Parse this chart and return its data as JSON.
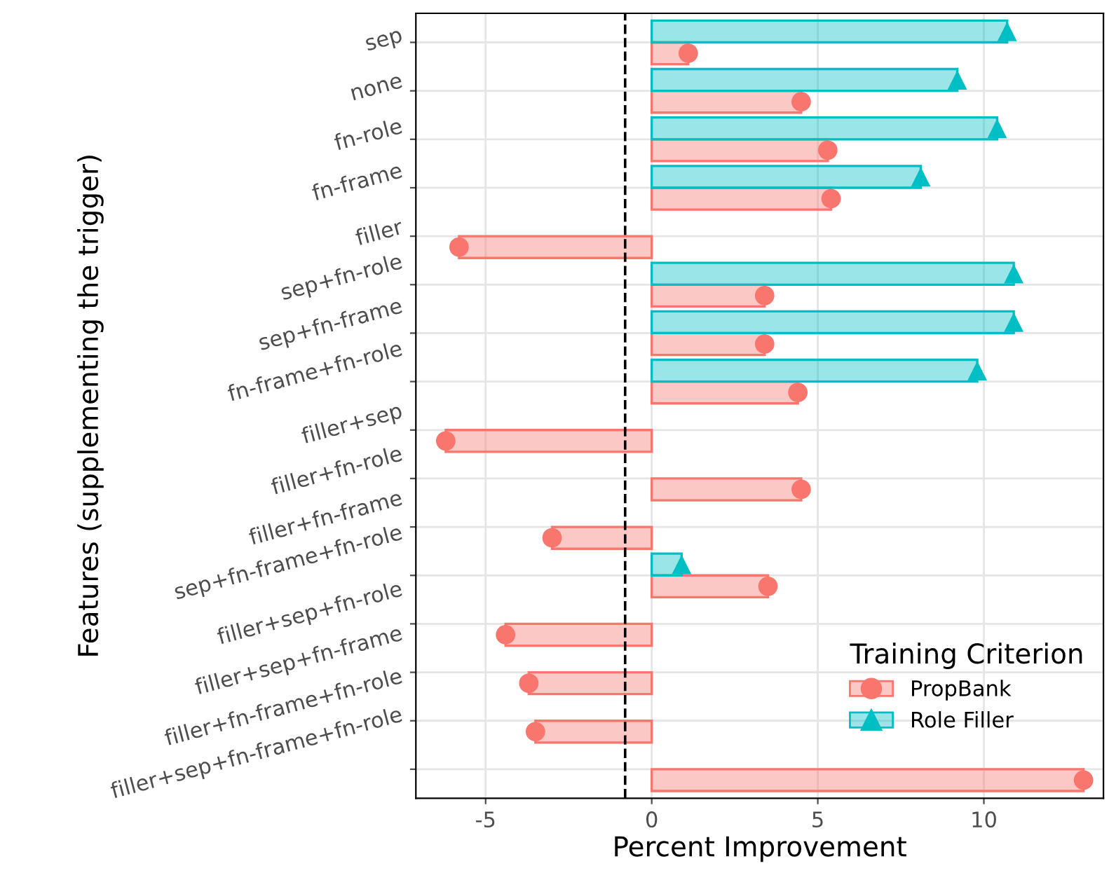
{
  "chart_data": {
    "type": "bar",
    "orientation": "horizontal",
    "xlabel": "Percent Improvement",
    "ylabel": "Features (supplementing the trigger)",
    "legend_title": "Training Criterion",
    "legend": "bottom right",
    "grid": true,
    "categories": [
      "sep",
      "none",
      "fn-role",
      "fn-frame",
      "filler",
      "sep+fn-role",
      "sep+fn-frame",
      "fn-frame+fn-role",
      "filler+sep",
      "filler+fn-role",
      "filler+fn-frame",
      "sep+fn-frame+fn-role",
      "filler+sep+fn-role",
      "filler+sep+fn-frame",
      "filler+fn-frame+fn-role",
      "filler+sep+fn-frame+fn-role"
    ],
    "series": [
      {
        "name": "PropBank",
        "color": "#f8766d",
        "values": [
          1.1,
          4.5,
          5.3,
          5.4,
          -5.8,
          3.4,
          3.4,
          4.4,
          -6.2,
          4.5,
          -3.0,
          3.5,
          -4.4,
          -3.7,
          -3.5,
          13.0
        ]
      },
      {
        "name": "Role Filler",
        "color": "#00bfc4",
        "values": [
          10.7,
          9.2,
          10.4,
          8.1,
          null,
          10.9,
          10.9,
          9.8,
          null,
          null,
          null,
          0.9,
          null,
          null,
          null,
          null
        ]
      },
      {
        "type": "scatter",
        "color": "#f8766d",
        "marker": "circle",
        "values": [
          1.1,
          4.5,
          5.3,
          5.4,
          -5.8,
          3.4,
          3.4,
          4.4,
          -6.2,
          4.5,
          -3.0,
          3.5,
          -4.4,
          -3.7,
          -3.5,
          13.0
        ]
      },
      {
        "type": "scatter",
        "color": "#00bfc4",
        "marker": "triangle",
        "values": [
          10.7,
          9.2,
          10.4,
          8.1,
          null,
          10.9,
          10.9,
          9.8,
          null,
          null,
          null,
          0.9,
          null,
          null,
          null,
          null
        ]
      }
    ],
    "ref_lines": [
      {
        "axis": "x",
        "value": -0.8,
        "line_style": "dashed",
        "color": "#000000"
      }
    ],
    "xlim": [
      -7.1,
      13.6
    ],
    "xticks": [
      -5,
      0,
      5,
      10
    ]
  }
}
